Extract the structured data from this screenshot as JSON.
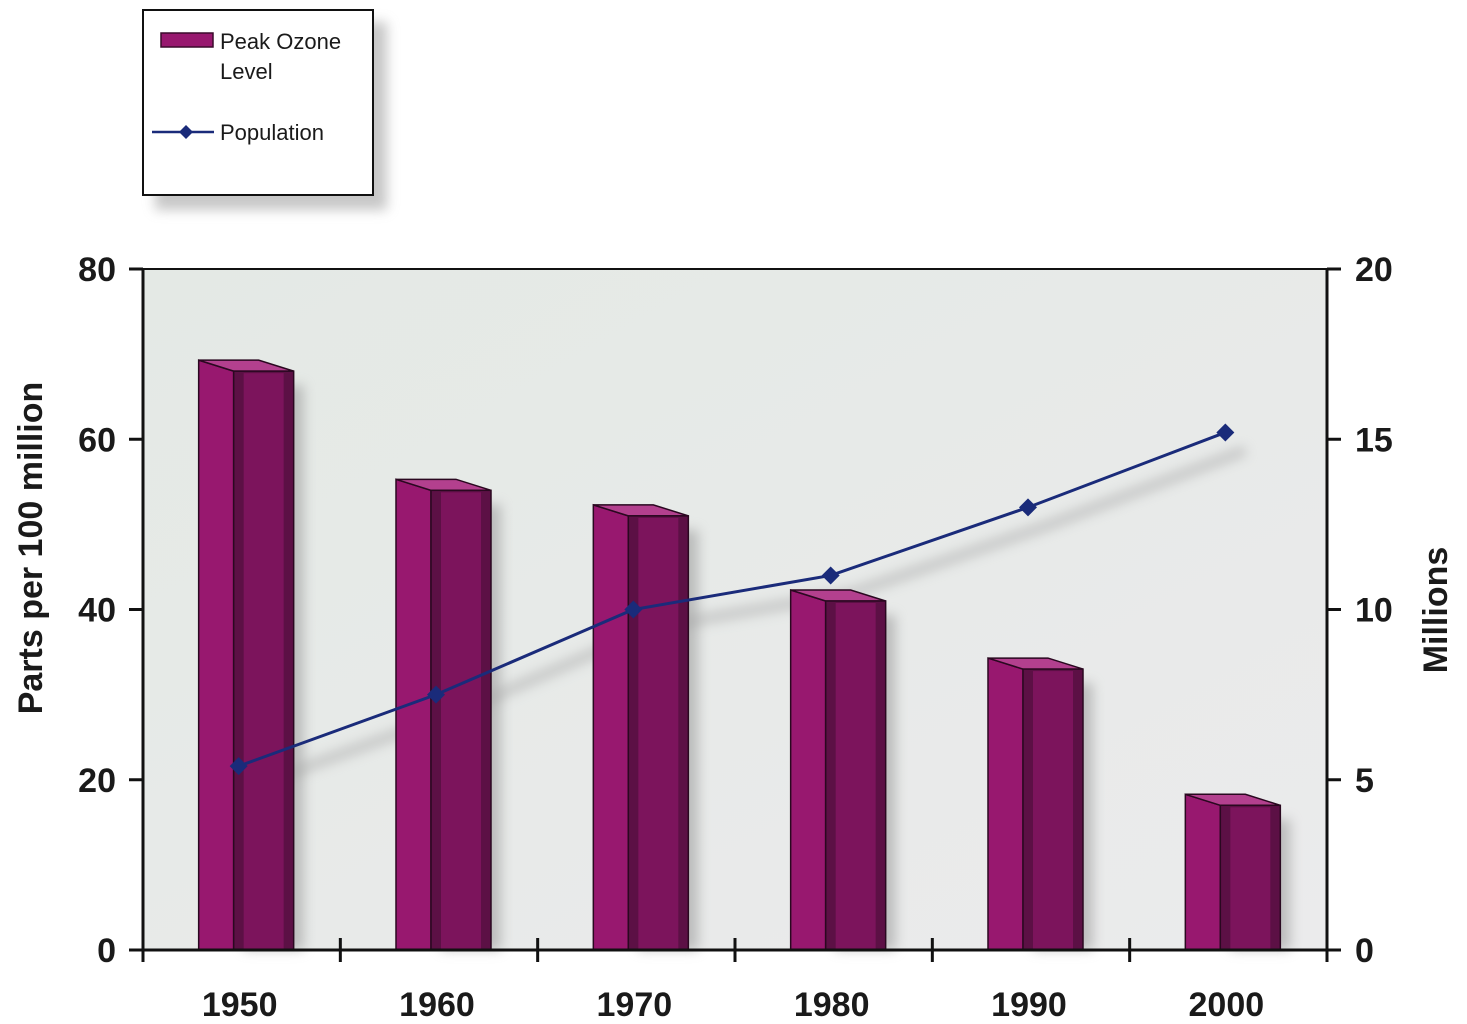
{
  "chart_data": {
    "type": "bar",
    "categories": [
      "1950",
      "1960",
      "1970",
      "1980",
      "1990",
      "2000"
    ],
    "series": [
      {
        "name": "Peak Ozone Level",
        "type": "bar",
        "axis": "left",
        "values": [
          68,
          54,
          51,
          41,
          33,
          17
        ]
      },
      {
        "name": "Population",
        "type": "line",
        "axis": "right",
        "values": [
          5.4,
          7.5,
          10,
          11,
          13,
          15.2
        ]
      }
    ],
    "ylabel": "Parts per 100 million",
    "ylabel_right": "Millions",
    "ylim": [
      0,
      80
    ],
    "ylim_right": [
      0,
      20
    ],
    "yticks": [
      "0",
      "20",
      "40",
      "60",
      "80"
    ],
    "yticks_right": [
      "0",
      "5",
      "10",
      "15",
      "20"
    ],
    "legend": {
      "placement": "top-left",
      "entries": [
        {
          "label_line1": "Peak Ozone",
          "label_line2": "Level"
        },
        {
          "label": "Population"
        }
      ]
    },
    "colors": {
      "bar_front": "#98186f",
      "bar_side": "#5c1045",
      "bar_top": "#b3408e",
      "line": "#1a2b7a",
      "plot_bg": "#e6e9e6"
    }
  }
}
